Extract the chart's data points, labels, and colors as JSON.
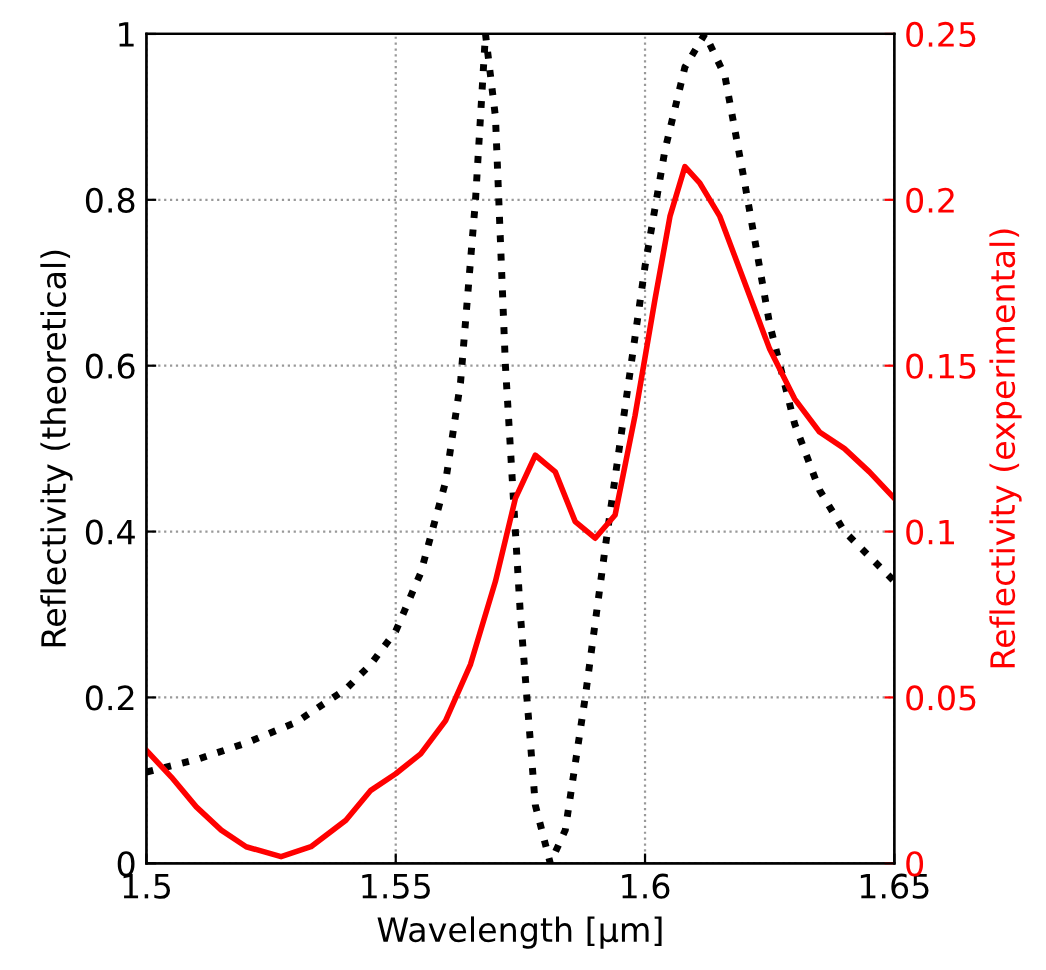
{
  "chart_data": {
    "type": "line",
    "xlabel": "Wavelength [μm]",
    "ylabel": "Reflectivity (theoretical)",
    "y2label": "Reflectivity (experimental)",
    "xlim": [
      1.5,
      1.65
    ],
    "xticks": [
      1.5,
      1.55,
      1.6,
      1.65
    ],
    "ylim": [
      0,
      1
    ],
    "yticks": [
      0,
      0.2,
      0.4,
      0.6,
      0.8,
      1
    ],
    "y2lim": [
      0,
      0.25
    ],
    "y2ticks": [
      0,
      0.05,
      0.1,
      0.15,
      0.2,
      0.25
    ],
    "grid": true,
    "series": [
      {
        "color": "#000000",
        "line_style": "dotted",
        "x": [
          1.5,
          1.51,
          1.52,
          1.53,
          1.54,
          1.545,
          1.55,
          1.555,
          1.56,
          1.563,
          1.566,
          1.568,
          1.57,
          1.572,
          1.575,
          1.578,
          1.581,
          1.584,
          1.588,
          1.592,
          1.596,
          1.6,
          1.604,
          1.608,
          1.612,
          1.616,
          1.62,
          1.625,
          1.63,
          1.635,
          1.64,
          1.645,
          1.65
        ],
        "values": [
          0.11,
          0.125,
          0.145,
          0.17,
          0.21,
          0.24,
          0.28,
          0.35,
          0.46,
          0.58,
          0.8,
          1.0,
          0.9,
          0.6,
          0.3,
          0.07,
          0.0,
          0.04,
          0.2,
          0.38,
          0.55,
          0.72,
          0.86,
          0.96,
          1.0,
          0.95,
          0.82,
          0.65,
          0.53,
          0.45,
          0.4,
          0.37,
          0.34
        ]
      },
      {
        "color": "#ff0000",
        "line_style": "solid",
        "axis": "y2",
        "x": [
          1.5,
          1.505,
          1.51,
          1.515,
          1.52,
          1.527,
          1.533,
          1.54,
          1.545,
          1.55,
          1.555,
          1.56,
          1.565,
          1.57,
          1.574,
          1.578,
          1.582,
          1.586,
          1.59,
          1.594,
          1.598,
          1.602,
          1.605,
          1.608,
          1.611,
          1.615,
          1.62,
          1.625,
          1.63,
          1.635,
          1.64,
          1.645,
          1.65
        ],
        "values": [
          0.034,
          0.026,
          0.017,
          0.01,
          0.005,
          0.002,
          0.005,
          0.013,
          0.022,
          0.027,
          0.033,
          0.043,
          0.06,
          0.085,
          0.11,
          0.123,
          0.118,
          0.103,
          0.098,
          0.105,
          0.135,
          0.17,
          0.195,
          0.21,
          0.205,
          0.195,
          0.175,
          0.155,
          0.14,
          0.13,
          0.125,
          0.118,
          0.11
        ]
      }
    ]
  }
}
